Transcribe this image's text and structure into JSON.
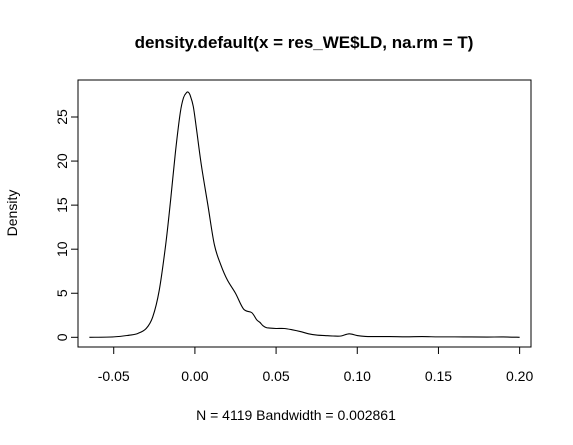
{
  "chart_data": {
    "type": "line",
    "title": "density.default(x = res_WE$LD, na.rm = T)",
    "xlabel": "N = 4119   Bandwidth = 0.002861",
    "ylabel": "Density",
    "xlim": [
      -0.072,
      0.207
    ],
    "ylim": [
      -1.1,
      29.2
    ],
    "x_ticks": [
      -0.05,
      0.0,
      0.05,
      0.1,
      0.15,
      0.2
    ],
    "x_tick_labels": [
      "-0.05",
      "0.00",
      "0.05",
      "0.10",
      "0.15",
      "0.20"
    ],
    "y_ticks": [
      0,
      5,
      10,
      15,
      20,
      25
    ],
    "y_tick_labels": [
      "0",
      "5",
      "10",
      "15",
      "20",
      "25"
    ],
    "grid": false,
    "series": [
      {
        "x": [
          -0.065,
          -0.05,
          -0.04,
          -0.035,
          -0.03,
          -0.026,
          -0.022,
          -0.018,
          -0.015,
          -0.012,
          -0.009,
          -0.007,
          -0.005,
          -0.004,
          -0.003,
          -0.001,
          0.001,
          0.004,
          0.008,
          0.012,
          0.016,
          0.02,
          0.025,
          0.03,
          0.035,
          0.038,
          0.04,
          0.042,
          0.044,
          0.046,
          0.05,
          0.055,
          0.06,
          0.065,
          0.07,
          0.075,
          0.08,
          0.085,
          0.09,
          0.095,
          0.1,
          0.105,
          0.11,
          0.12,
          0.13,
          0.14,
          0.15,
          0.16,
          0.17,
          0.18,
          0.19,
          0.2
        ],
        "y": [
          0.0,
          0.05,
          0.25,
          0.45,
          1.0,
          2.3,
          5.3,
          10.5,
          15.5,
          21.0,
          25.5,
          27.2,
          27.8,
          27.8,
          27.5,
          26.2,
          23.6,
          19.5,
          15.0,
          10.5,
          8.2,
          6.5,
          5.0,
          3.2,
          2.8,
          2.0,
          1.7,
          1.3,
          1.1,
          1.05,
          1.0,
          1.0,
          0.85,
          0.65,
          0.4,
          0.25,
          0.2,
          0.15,
          0.15,
          0.4,
          0.2,
          0.1,
          0.08,
          0.08,
          0.06,
          0.08,
          0.05,
          0.05,
          0.04,
          0.03,
          0.04,
          0.0
        ]
      }
    ]
  }
}
